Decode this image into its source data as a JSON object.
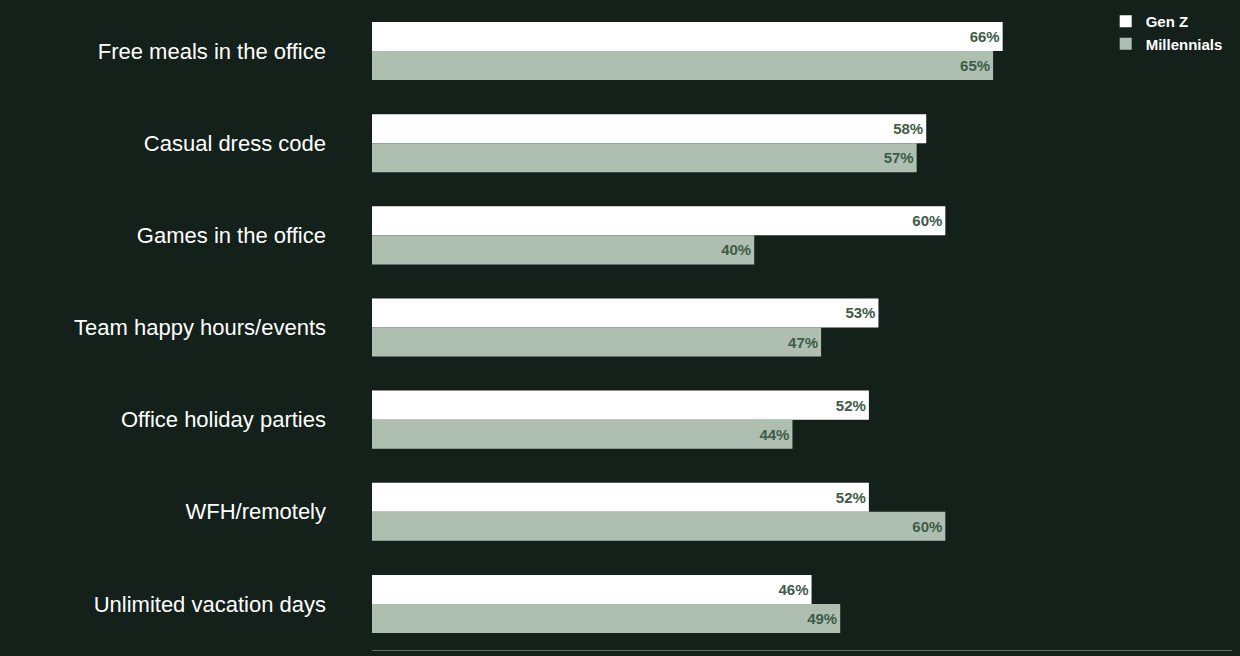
{
  "chart_data": {
    "type": "bar",
    "orientation": "horizontal",
    "categories": [
      "Free meals in the office",
      "Casual dress code",
      "Games in the office",
      "Team happy hours/events",
      "Office holiday parties",
      "WFH/remotely",
      "Unlimited vacation days"
    ],
    "series": [
      {
        "name": "Gen Z",
        "color": "#ffffff",
        "values": [
          66,
          58,
          60,
          53,
          52,
          52,
          46
        ],
        "value_labels": [
          "66%",
          "58%",
          "60%",
          "53%",
          "52%",
          "52%",
          "46%"
        ]
      },
      {
        "name": "Millennials",
        "color": "#aebfb2",
        "values": [
          65,
          57,
          40,
          47,
          44,
          60,
          49
        ],
        "value_labels": [
          "65%",
          "57%",
          "40%",
          "47%",
          "44%",
          "60%",
          "49%"
        ]
      }
    ],
    "xlim": [
      0,
      90
    ],
    "grid": false,
    "legend": "top right",
    "data_labels": true,
    "tick_labels": "y"
  }
}
